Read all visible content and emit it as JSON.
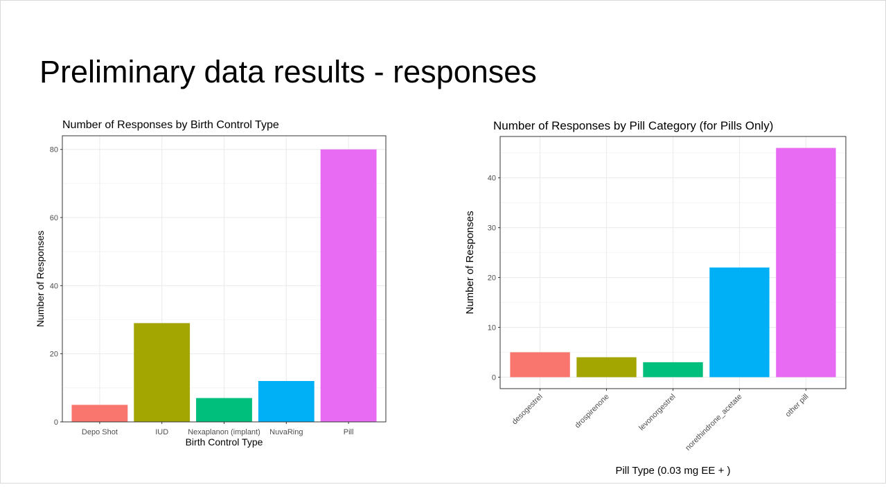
{
  "slide": {
    "title": "Preliminary data results - responses"
  },
  "chart_data": [
    {
      "type": "bar",
      "title": "Number of Responses by Birth Control Type",
      "xlabel": "Birth Control Type",
      "ylabel": "Number of Responses",
      "categories": [
        "Depo Shot",
        "IUD",
        "Nexaplanon (implant)",
        "NuvaRing",
        "Pill"
      ],
      "values": [
        5,
        29,
        7,
        12,
        80
      ],
      "colors": [
        "#F8766D",
        "#A3A500",
        "#00BF7D",
        "#00B0F6",
        "#E76BF3"
      ],
      "ylim": [
        0,
        84
      ],
      "yticks": [
        0,
        20,
        40,
        60,
        80
      ],
      "grid": true,
      "x_tick_rotation": 0
    },
    {
      "type": "bar",
      "title": "Number of Responses by Pill Category (for Pills Only)",
      "xlabel": "Pill Type (0.03 mg EE + )",
      "ylabel": "Number of Responses",
      "categories": [
        "desogestrel",
        "drospirenone",
        "levonorgestrel",
        "norethindrone_acetate",
        "other pill"
      ],
      "values": [
        5,
        4,
        3,
        22,
        46
      ],
      "colors": [
        "#F8766D",
        "#A3A500",
        "#00BF7D",
        "#00B0F6",
        "#E76BF3"
      ],
      "ylim": [
        -2.3,
        48.3
      ],
      "yticks": [
        0,
        10,
        20,
        30,
        40
      ],
      "grid": true,
      "x_tick_rotation": -45
    }
  ]
}
